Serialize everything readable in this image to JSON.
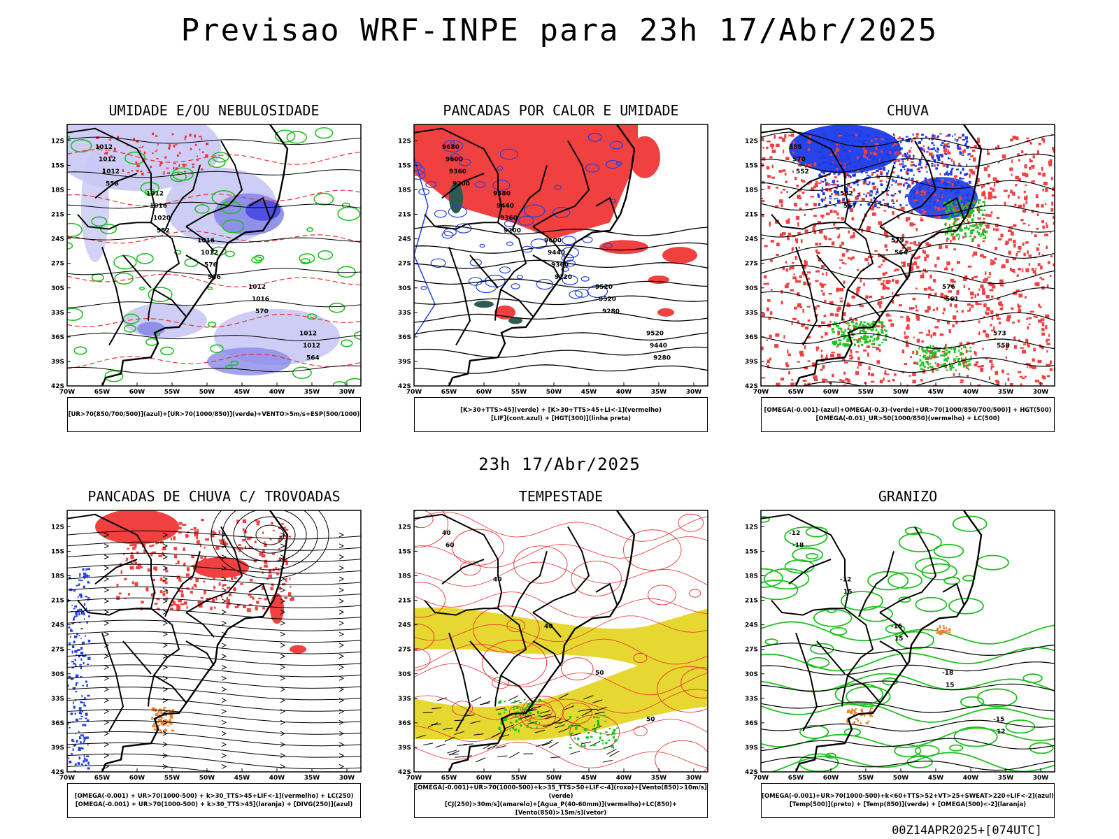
{
  "page": {
    "title": "Previsao WRF-INPE  para 23h 17/Abr/2025",
    "mid_title": "23h 17/Abr/2025",
    "footer": "00Z14APR2025+[074UTC]"
  },
  "axes": {
    "lat_labels": [
      "12S",
      "15S",
      "18S",
      "21S",
      "24S",
      "27S",
      "30S",
      "33S",
      "36S",
      "39S",
      "42S"
    ],
    "lon_labels": [
      "70W",
      "65W",
      "60W",
      "55W",
      "50W",
      "45W",
      "40W",
      "35W",
      "30W"
    ]
  },
  "panels": [
    {
      "id": "umidade",
      "title": "UMIDADE E/OU NEBULOSIDADE",
      "legend": [
        "[UR>70(850/700/500)](azul)+[UR>70(1000/850)](verde)+VENTO>5m/s+ESP(500/1000)"
      ],
      "contour_labels": [
        "1012",
        "1012",
        "1016",
        "1012",
        "1012",
        "1012",
        "1016",
        "1012",
        "1016",
        "1012",
        "1012",
        "1020",
        "576",
        "570",
        "564",
        "558",
        "552",
        "546"
      ],
      "colors": {
        "fill1": "#c8c8f5",
        "fill2": "#8a8ae8",
        "fill3": "#4848e0",
        "line1": "#20c020",
        "line2": "#e83030"
      }
    },
    {
      "id": "pancadas-calor",
      "title": "PANCADAS POR CALOR E UMIDADE",
      "legend": [
        "[K>30+TTS>45](verde) + [K>30+TTS>45+LI<-1](vermelho)",
        "[LIF](cont.azul) + [HGT(300)](linha preta)"
      ],
      "contour_labels": [
        "9680",
        "9580",
        "9600",
        "9520",
        "9520",
        "9600",
        "9440",
        "9440",
        "9520",
        "9440",
        "9360",
        "9360",
        "9360",
        "9280",
        "9280",
        "9200",
        "9200",
        "9120"
      ],
      "colors": {
        "fill1": "#f04040",
        "fill2": "#2d5a52",
        "line1": "#2040e0"
      }
    },
    {
      "id": "chuva",
      "title": "CHUVA",
      "legend": [
        "[OMEGA(-0.001)-(azul)+OMEGA(-0.3)-(verde)+UR>70(1000/850/700/500)] + HGT(500)",
        "[OMEGA(-0.01)_UR>50(1000/850)(vermelho) + LC(500)"
      ],
      "contour_labels": [
        "585",
        "582",
        "579",
        "576",
        "573",
        "570",
        "567",
        "564",
        "561",
        "558",
        "552"
      ],
      "colors": {
        "fill1": "#f04040",
        "fill2": "#1a3ae8",
        "fill3": "#20c020"
      }
    },
    {
      "id": "trovoadas",
      "title": "PANCADAS DE CHUVA C/ TROVOADAS",
      "legend": [
        "[OMEGA(-0.001) + UR>70(1000-500) + k>30_TTS>45+LIF<-1](vermelho) + LC(250)",
        "[OMEGA(-0.001) + UR>70(1000-500) + k>30_TTS>45](laranja) + [DIVG(250)](azul)"
      ],
      "contour_labels": [],
      "colors": {
        "fill1": "#f04040",
        "fill2": "#f08030",
        "line1": "#2040e0"
      }
    },
    {
      "id": "tempestade",
      "title": "TEMPESTADE",
      "legend": [
        "[OMEGA(-0.001)+UR>70(1000-500)+k>35_TTS>50+LIF<-4](roxo)+[Vento(850)>10m/s](verde)",
        "[CJ(250)>30m/s](amarelo)+[Agua_P(40-60mm)](vermelho)+LC(850)+[Vento(850)>15m/s](vetor)"
      ],
      "contour_labels": [
        "40",
        "40",
        "40",
        "50",
        "50",
        "60"
      ],
      "colors": {
        "fill1": "#e6d830",
        "line1": "#e83030",
        "fill2": "#20c020"
      }
    },
    {
      "id": "granizo",
      "title": "GRANIZO",
      "legend": [
        "[OMEGA(-0.001)+UR>70(1000-500)+k<60+TTS>52+VT>25+SWEAT>220+LIF<-2](azul)",
        "[Temp(500)](preto) + [Temp(850)](verde) + [OMEGA(500)<-2](laranja)"
      ],
      "contour_labels": [
        "-12",
        "-12",
        "-15",
        "-18",
        "-15",
        "-18",
        "15",
        "15",
        "15",
        "12"
      ],
      "colors": {
        "line1": "#20c020",
        "fill1": "#f08030"
      }
    }
  ]
}
